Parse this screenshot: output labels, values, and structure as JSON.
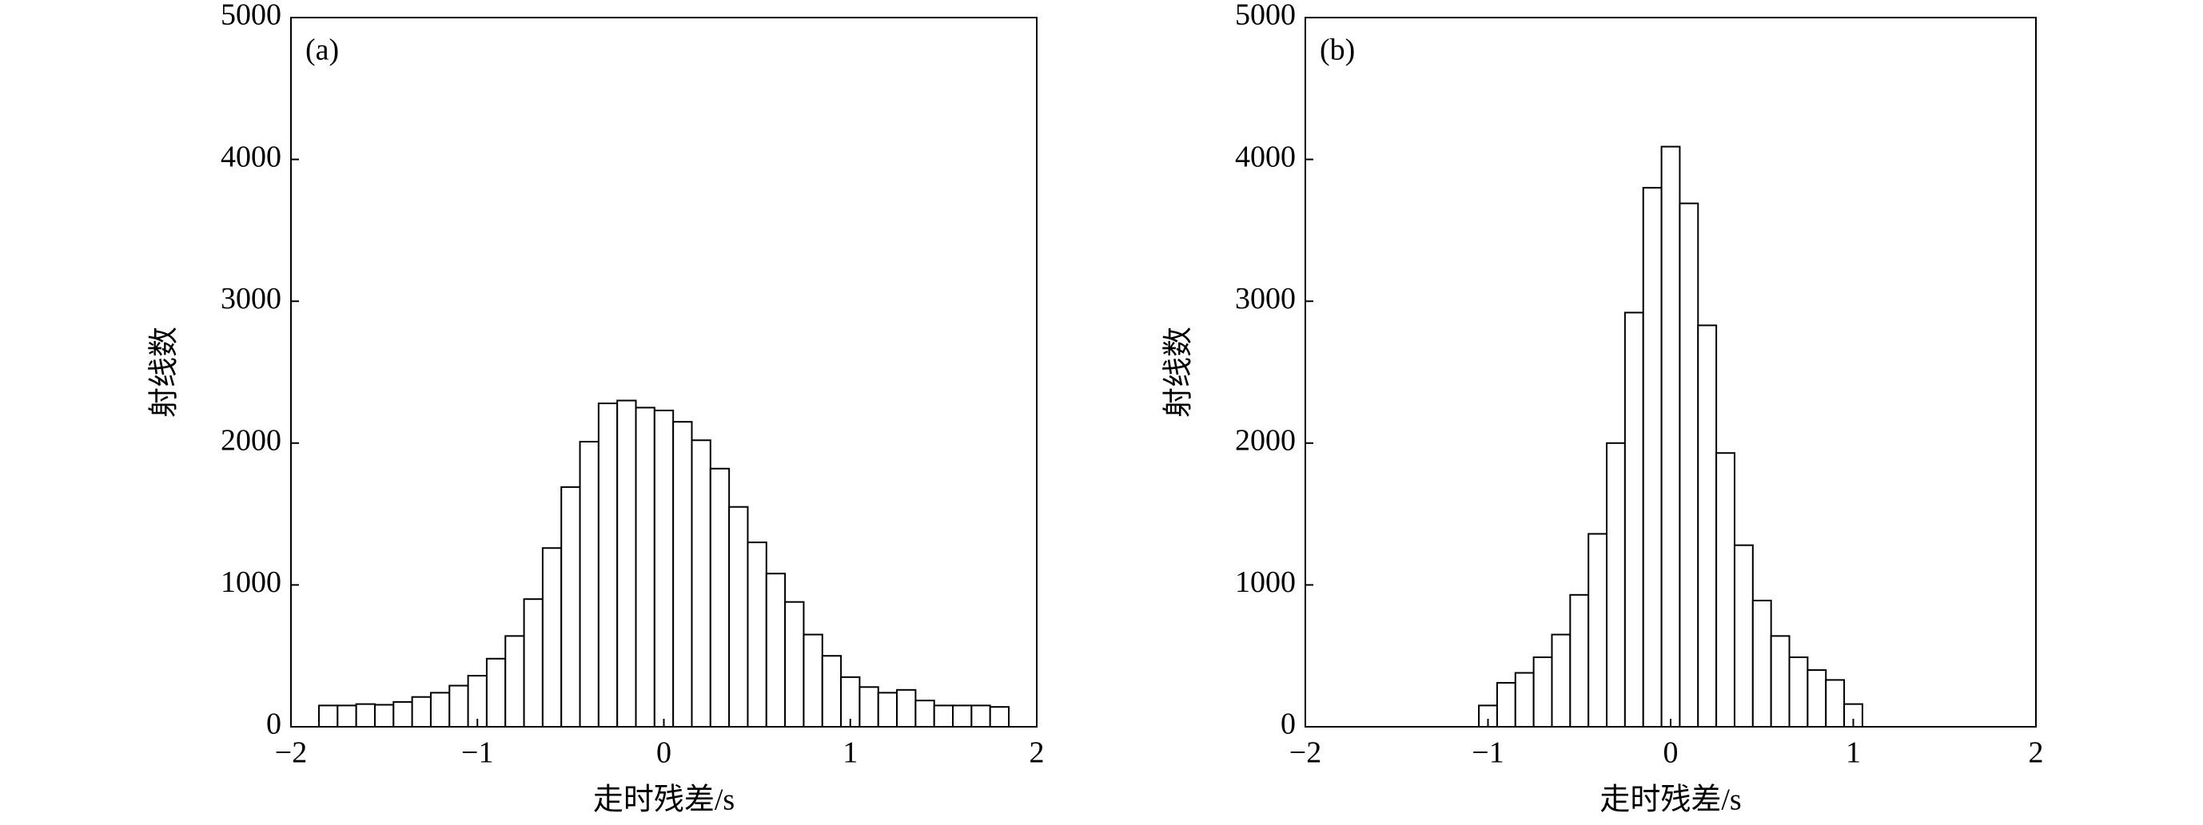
{
  "chart_data": [
    {
      "type": "histogram",
      "annotation": "(a)",
      "x_label": "走时残差/s",
      "y_label": "射线数",
      "bins": [
        -1.85,
        -1.75,
        -1.65,
        -1.55,
        -1.45,
        -1.35,
        -1.25,
        -1.15,
        -1.05,
        -0.95,
        -0.85,
        -0.75,
        -0.65,
        -0.55,
        -0.45,
        -0.35,
        -0.25,
        -0.15,
        -0.05,
        0.05,
        0.15,
        0.25,
        0.35,
        0.45,
        0.55,
        0.65,
        0.75,
        0.85,
        0.95,
        1.05,
        1.15,
        1.25,
        1.35,
        1.45,
        1.55,
        1.65,
        1.75,
        1.85
      ],
      "values": [
        150,
        150,
        160,
        155,
        175,
        210,
        240,
        290,
        360,
        480,
        640,
        900,
        1260,
        1690,
        2010,
        2280,
        2300,
        2250,
        2230,
        2150,
        2020,
        1820,
        1550,
        1300,
        1080,
        880,
        650,
        500,
        350,
        280,
        240,
        260,
        185,
        150,
        150,
        150,
        140
      ],
      "color": "#ffffff",
      "xlim": [
        -2,
        2
      ],
      "xticks": [
        {
          "value": -2,
          "label": "−2"
        },
        {
          "value": -1,
          "label": "−1"
        },
        0,
        1,
        2
      ],
      "ylim": [
        0,
        5000
      ],
      "yticks": [
        0,
        1000,
        2000,
        3000,
        4000,
        5000
      ]
    },
    {
      "type": "histogram",
      "annotation": "(b)",
      "x_label": "走时残差/s",
      "y_label": "射线数",
      "bins": [
        -1.05,
        -0.95,
        -0.85,
        -0.75,
        -0.65,
        -0.55,
        -0.45,
        -0.35,
        -0.25,
        -0.15,
        -0.05,
        0.05,
        0.15,
        0.25,
        0.35,
        0.45,
        0.55,
        0.65,
        0.75,
        0.85,
        0.95,
        1.05
      ],
      "values": [
        150,
        310,
        380,
        490,
        650,
        930,
        1360,
        2000,
        2920,
        3800,
        4090,
        3690,
        2830,
        1930,
        1280,
        890,
        640,
        490,
        400,
        330,
        160
      ],
      "color": "#ffffff",
      "xlim": [
        -2,
        2
      ],
      "xticks": [
        {
          "value": -2,
          "label": "−2"
        },
        {
          "value": -1,
          "label": "−1"
        },
        0,
        1,
        2
      ],
      "ylim": [
        0,
        5000
      ],
      "yticks": [
        0,
        1000,
        2000,
        3000,
        4000,
        5000
      ]
    }
  ]
}
